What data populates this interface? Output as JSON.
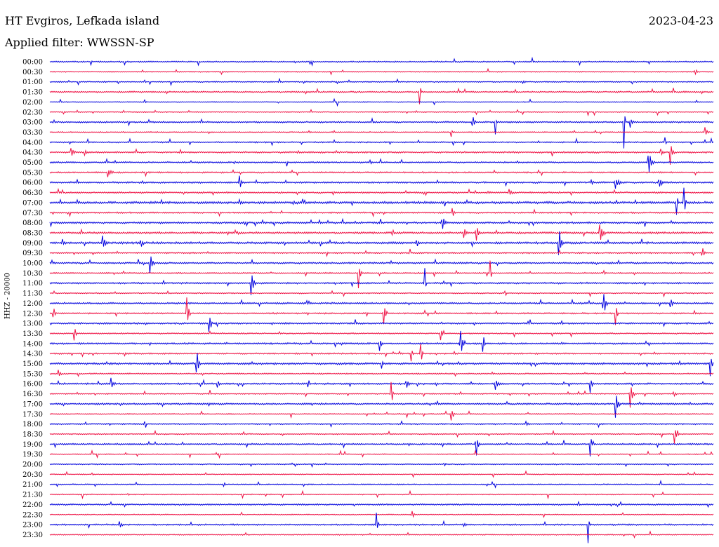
{
  "header": {
    "station": "HT Evgiros, Lefkada island",
    "date": "2023-04-23",
    "filter": "Applied filter: WWSSN-SP"
  },
  "chart_data": {
    "type": "line",
    "title": "HT Evgiros, Lefkada island",
    "ylabel": "HHZ - 20000",
    "colors": {
      "even_row": "#0000dd",
      "odd_row": "#ee1144"
    },
    "row_labels": [
      "00:00",
      "00:30",
      "01:00",
      "01:30",
      "02:00",
      "02:30",
      "03:00",
      "03:30",
      "04:00",
      "04:30",
      "05:00",
      "05:30",
      "06:00",
      "06:30",
      "07:00",
      "07:30",
      "08:00",
      "08:30",
      "09:00",
      "09:30",
      "10:00",
      "10:30",
      "11:00",
      "11:30",
      "12:00",
      "12:30",
      "13:00",
      "13:30",
      "14:00",
      "14:30",
      "15:00",
      "15:30",
      "16:00",
      "16:30",
      "17:00",
      "17:30",
      "18:00",
      "18:30",
      "19:00",
      "19:30",
      "20:00",
      "20:30",
      "21:00",
      "21:30",
      "22:00",
      "22:30",
      "23:00",
      "23:30"
    ],
    "row_minutes": 30,
    "noise": [
      0.8,
      0.6,
      0.7,
      0.9,
      0.5,
      0.6,
      0.9,
      0.7,
      0.8,
      1.0,
      0.9,
      0.9,
      1.0,
      1.0,
      1.4,
      0.9,
      1.1,
      1.2,
      1.3,
      0.9,
      1.0,
      0.8,
      1.0,
      0.7,
      1.0,
      0.9,
      1.0,
      0.8,
      1.0,
      0.9,
      1.2,
      0.8,
      1.0,
      0.7,
      1.0,
      0.6,
      0.8,
      0.7,
      0.9,
      0.6,
      0.7,
      0.6,
      0.7,
      0.6,
      0.9,
      0.6,
      0.9,
      0.7
    ],
    "events": [
      [
        1,
        0.972,
        8,
        1.6
      ],
      [
        2,
        0.713,
        3,
        1.8
      ],
      [
        2,
        0.142,
        3,
        1.4
      ],
      [
        3,
        0.557,
        25,
        1.0
      ],
      [
        4,
        0.142,
        3,
        1.4
      ],
      [
        6,
        0.671,
        45,
        0.7
      ],
      [
        6,
        0.637,
        12,
        1.8
      ],
      [
        6,
        0.865,
        55,
        1.0
      ],
      [
        6,
        0.874,
        12,
        2.0
      ],
      [
        7,
        0.604,
        10,
        1.4
      ],
      [
        7,
        0.987,
        8,
        2.4
      ],
      [
        7,
        0.39,
        4,
        1.0
      ],
      [
        8,
        0.926,
        20,
        1.2
      ],
      [
        9,
        0.032,
        10,
        2.0
      ],
      [
        9,
        0.052,
        6,
        1.6
      ],
      [
        9,
        0.92,
        10,
        1.8
      ],
      [
        9,
        0.935,
        20,
        2.2
      ],
      [
        10,
        0.902,
        20,
        3.0
      ],
      [
        10,
        0.482,
        6,
        1.4
      ],
      [
        10,
        0.277,
        4,
        1.2
      ],
      [
        11,
        0.087,
        8,
        3.0
      ],
      [
        12,
        0.285,
        25,
        1.4
      ],
      [
        12,
        0.816,
        5,
        1.2
      ],
      [
        12,
        0.852,
        10,
        3.5
      ],
      [
        12,
        0.918,
        12,
        2.4
      ],
      [
        13,
        0.659,
        2,
        2.0
      ],
      [
        13,
        0.692,
        7,
        2.0
      ],
      [
        14,
        0.285,
        5,
        2.0
      ],
      [
        14,
        0.367,
        2,
        2.0
      ],
      [
        14,
        0.944,
        35,
        1.0
      ],
      [
        14,
        0.955,
        30,
        1.6
      ],
      [
        15,
        0.606,
        12,
        1.6
      ],
      [
        16,
        0.591,
        18,
        2.0
      ],
      [
        17,
        0.268,
        3,
        1.4
      ],
      [
        17,
        0.624,
        12,
        2.0
      ],
      [
        17,
        0.643,
        12,
        2.2
      ],
      [
        17,
        0.829,
        25,
        2.5
      ],
      [
        18,
        0.019,
        5,
        1.6
      ],
      [
        18,
        0.079,
        15,
        2.2
      ],
      [
        18,
        0.137,
        10,
        1.6
      ],
      [
        18,
        0.552,
        8,
        1.4
      ],
      [
        18,
        0.767,
        30,
        2.2
      ],
      [
        19,
        0.983,
        10,
        1.8
      ],
      [
        20,
        0.151,
        18,
        2.2
      ],
      [
        21,
        0.465,
        25,
        1.8
      ],
      [
        21,
        0.663,
        55,
        0.8
      ],
      [
        21,
        0.835,
        6,
        1.0
      ],
      [
        22,
        0.303,
        25,
        2.4
      ],
      [
        22,
        0.565,
        30,
        0.8
      ],
      [
        23,
        0.098,
        3,
        1.0
      ],
      [
        24,
        0.834,
        30,
        2.0
      ],
      [
        24,
        0.935,
        10,
        1.6
      ],
      [
        25,
        0.005,
        12,
        1.8
      ],
      [
        25,
        0.206,
        30,
        2.0
      ],
      [
        25,
        0.503,
        30,
        2.0
      ],
      [
        25,
        0.852,
        25,
        1.6
      ],
      [
        26,
        0.24,
        30,
        1.6
      ],
      [
        27,
        0.036,
        25,
        1.4
      ],
      [
        27,
        0.589,
        15,
        1.4
      ],
      [
        28,
        0.496,
        25,
        1.6
      ],
      [
        28,
        0.619,
        20,
        2.4
      ],
      [
        28,
        0.652,
        25,
        1.6
      ],
      [
        29,
        0.112,
        6,
        1.0
      ],
      [
        29,
        0.544,
        20,
        1.2
      ],
      [
        29,
        0.559,
        25,
        1.4
      ],
      [
        30,
        0.221,
        30,
        1.6
      ],
      [
        30,
        0.499,
        15,
        1.2
      ],
      [
        30,
        0.995,
        20,
        2.0
      ],
      [
        31,
        0.012,
        10,
        2.0
      ],
      [
        32,
        0.092,
        8,
        2.2
      ],
      [
        32,
        0.252,
        10,
        1.6
      ],
      [
        32,
        0.389,
        10,
        1.4
      ],
      [
        32,
        0.537,
        12,
        1.8
      ],
      [
        32,
        0.671,
        12,
        2.2
      ],
      [
        32,
        0.814,
        15,
        2.0
      ],
      [
        33,
        0.514,
        40,
        1.2
      ],
      [
        33,
        0.874,
        25,
        2.4
      ],
      [
        33,
        0.94,
        8,
        1.6
      ],
      [
        34,
        0.852,
        30,
        2.2
      ],
      [
        35,
        0.604,
        25,
        1.8
      ],
      [
        36,
        0.717,
        4,
        2.0
      ],
      [
        37,
        0.941,
        15,
        2.2
      ],
      [
        38,
        0.643,
        20,
        1.6
      ],
      [
        38,
        0.814,
        30,
        1.2
      ],
      [
        39,
        0.25,
        4,
        1.2
      ],
      [
        40,
        0.395,
        4,
        1.2
      ],
      [
        40,
        0.594,
        4,
        1.2
      ],
      [
        41,
        0.063,
        4,
        1.0
      ],
      [
        42,
        0.262,
        5,
        1.2
      ],
      [
        43,
        0.117,
        3,
        1.0
      ],
      [
        45,
        0.545,
        15,
        1.4
      ],
      [
        46,
        0.105,
        8,
        1.8
      ],
      [
        46,
        0.492,
        20,
        1.4
      ],
      [
        46,
        0.623,
        4,
        2.0
      ],
      [
        46,
        0.811,
        35,
        1.0
      ]
    ]
  }
}
